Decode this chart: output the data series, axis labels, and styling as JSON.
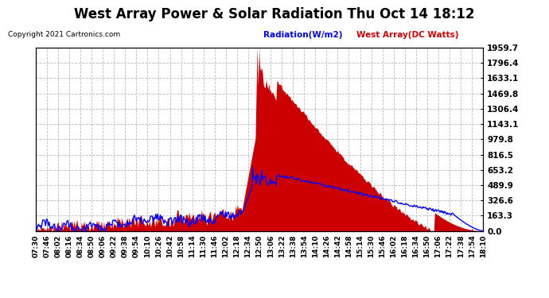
{
  "title": "West Array Power & Solar Radiation Thu Oct 14 18:12",
  "copyright": "Copyright 2021 Cartronics.com",
  "legend_radiation": "Radiation(W/m2)",
  "legend_west": "West Array(DC Watts)",
  "ymin": 0.0,
  "ymax": 1959.7,
  "yticks": [
    0.0,
    163.3,
    326.6,
    489.9,
    653.2,
    816.5,
    979.8,
    1143.1,
    1306.4,
    1469.8,
    1633.1,
    1796.4,
    1959.7
  ],
  "background_color": "#ffffff",
  "plot_bg_color": "#ffffff",
  "grid_color": "#bbbbbb",
  "radiation_color": "#0000ff",
  "west_fill_color": "#cc0000",
  "title_color": "#000000",
  "copyright_color": "#000000",
  "xtick_labels": [
    "07:30",
    "07:46",
    "08:02",
    "08:16",
    "08:34",
    "08:50",
    "09:06",
    "09:22",
    "09:38",
    "09:54",
    "10:10",
    "10:26",
    "10:42",
    "10:58",
    "11:14",
    "11:30",
    "11:46",
    "12:02",
    "12:18",
    "12:34",
    "12:50",
    "13:06",
    "13:22",
    "13:38",
    "13:54",
    "14:10",
    "14:26",
    "14:42",
    "14:58",
    "15:14",
    "15:30",
    "15:46",
    "16:02",
    "16:18",
    "16:34",
    "16:50",
    "17:06",
    "17:22",
    "17:38",
    "17:54",
    "18:10"
  ]
}
